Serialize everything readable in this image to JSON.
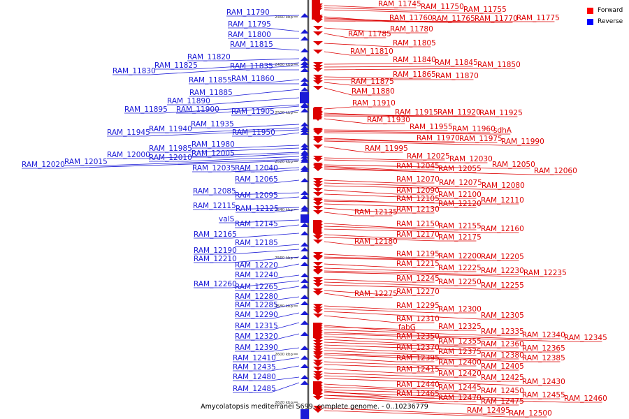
{
  "caption": "Amycolatopsis mediterranei S699, complete genome. - 0..10236779",
  "legend": [
    {
      "label": "Forward",
      "color": "#ff0000"
    },
    {
      "label": "Reverse",
      "color": "#0000ff"
    }
  ],
  "colors": {
    "forward": "#dd0000",
    "reverse": "#1a1ad6",
    "axis": "#555555"
  },
  "ticks": [
    "2460 kbp",
    "2480 kbp",
    "2500 kbp",
    "2520 kbp",
    "2540 kbp",
    "2560 kbp",
    "2580 kbp",
    "2600 kbp",
    "2620 kbp"
  ],
  "reverse_genes": [
    "RAM_11790",
    "RAM_11795",
    "RAM_11800",
    "RAM_11815",
    "RAM_11820",
    "RAM_11825",
    "RAM_11830",
    "RAM_11835",
    "RAM_11855",
    "RAM_11860",
    "RAM_11885",
    "RAM_11890",
    "RAM_11895",
    "RAM_11900",
    "RAM_11905",
    "RAM_11935",
    "RAM_11940",
    "RAM_11945",
    "RAM_11950",
    "RAM_11980",
    "RAM_11985",
    "RAM_12000",
    "RAM_12005",
    "RAM_12010",
    "RAM_12015",
    "RAM_12020",
    "RAM_12035",
    "RAM_12040",
    "RAM_12065",
    "RAM_12085",
    "RAM_12095",
    "RAM_12115",
    "RAM_12125",
    "valS",
    "RAM_12145",
    "RAM_12165",
    "RAM_12185",
    "RAM_12190",
    "RAM_12210",
    "RAM_12220",
    "RAM_12240",
    "RAM_12260",
    "RAM_12265",
    "RAM_12280",
    "RAM_12285",
    "RAM_12290",
    "RAM_12315",
    "RAM_12320",
    "RAM_12390",
    "RAM_12410",
    "RAM_12435",
    "RAM_12480",
    "RAM_12485"
  ],
  "forward_genes": [
    "RAM_11745",
    "RAM_11750",
    "RAM_11755",
    "RAM_11760",
    "RAM_11765",
    "RAM_11770",
    "RAM_11775",
    "RAM_11780",
    "RAM_11785",
    "RAM_11805",
    "RAM_11810",
    "RAM_11840",
    "RAM_11845",
    "RAM_11850",
    "RAM_11865",
    "RAM_11870",
    "RAM_11875",
    "RAM_11880",
    "RAM_11910",
    "RAM_11915",
    "RAM_11920",
    "RAM_11925",
    "RAM_11930",
    "RAM_11955",
    "RAM_11960",
    "sdhA",
    "RAM_11970",
    "RAM_11975",
    "RAM_11990",
    "RAM_11995",
    "RAM_12025",
    "RAM_12030",
    "RAM_12045",
    "RAM_12050",
    "RAM_12055",
    "RAM_12060",
    "RAM_12070",
    "RAM_12075",
    "RAM_12080",
    "RAM_12090",
    "RAM_12100",
    "RAM_12105",
    "RAM_12110",
    "RAM_12120",
    "RAM_12130",
    "RAM_12135",
    "RAM_12150",
    "RAM_12155",
    "RAM_12160",
    "RAM_12170",
    "RAM_12175",
    "RAM_12180",
    "RAM_12195",
    "RAM_12200",
    "RAM_12205",
    "RAM_12215",
    "RAM_12225",
    "RAM_12230",
    "RAM_12235",
    "RAM_12245",
    "RAM_12250",
    "RAM_12255",
    "RAM_12270",
    "RAM_12275",
    "RAM_12295",
    "RAM_12300",
    "RAM_12305",
    "RAM_12310",
    "fabG",
    "RAM_12325",
    "RAM_12335",
    "RAM_12340",
    "RAM_12345",
    "RAM_12350",
    "RAM_12355",
    "RAM_12360",
    "RAM_12365",
    "RAM_12370",
    "RAM_12375",
    "RAM_12380",
    "RAM_12385",
    "RAM_12395",
    "RAM_12400",
    "RAM_12405",
    "RAM_12415",
    "RAM_12420",
    "RAM_12425",
    "RAM_12430",
    "RAM_12440",
    "RAM_12445",
    "RAM_12450",
    "RAM_12455",
    "RAM_12460",
    "RAM_12465",
    "RAM_12470",
    "RAM_12475",
    "RAM_12495",
    "RAM_12500"
  ]
}
